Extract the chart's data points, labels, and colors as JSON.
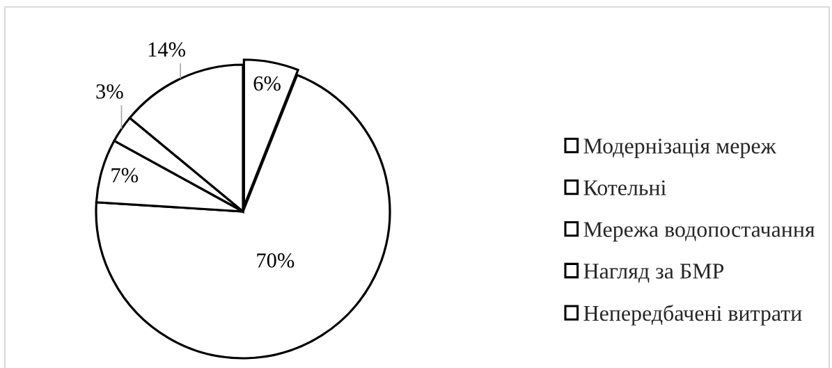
{
  "chart_data": {
    "type": "pie",
    "categories": [
      "Модернізація мереж",
      "Котельні",
      "Мережа водопостачання",
      "Нагляд за БМР",
      "Непередбачені витрати"
    ],
    "values": [
      6,
      70,
      7,
      3,
      14
    ],
    "colors": [
      "#ffffff",
      "#ffffff",
      "#ffffff",
      "#ffffff",
      "#ffffff"
    ],
    "value_labels": [
      "6%",
      "70%",
      "7%",
      "3%",
      "14%"
    ],
    "legend": "right"
  }
}
